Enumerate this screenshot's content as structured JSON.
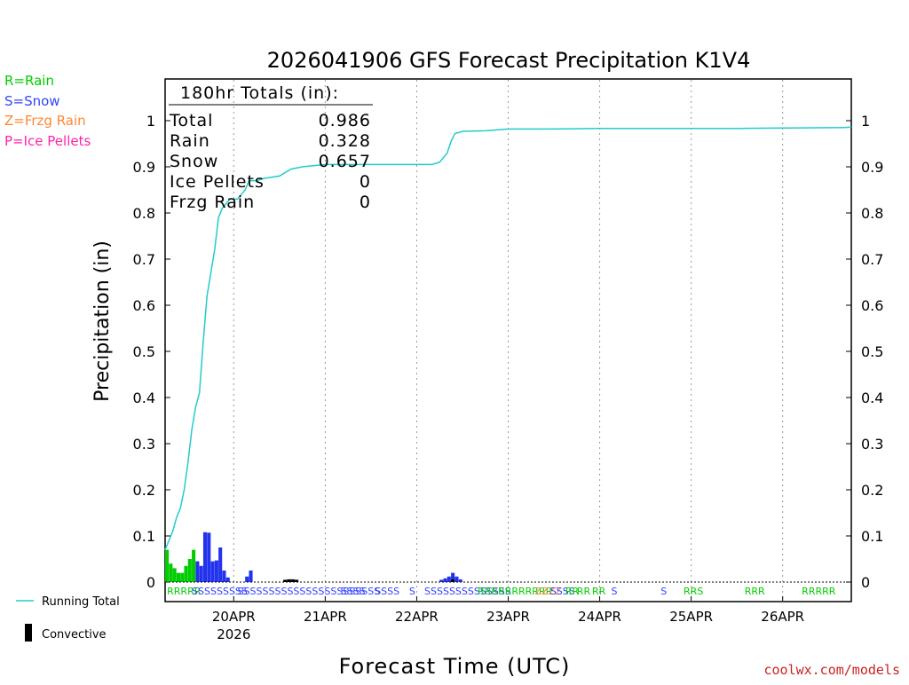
{
  "chart_data": {
    "type": "bar",
    "title": "2026041906 GFS Forecast Precipitation K1V4",
    "xlabel": "Forecast Time (UTC)",
    "ylabel": "Precipitation (in)",
    "ylim": [
      0,
      1.05
    ],
    "xlim_hours": [
      0,
      180
    ],
    "y_ticks": [
      "0",
      "0.1",
      "0.2",
      "0.3",
      "0.4",
      "0.5",
      "0.6",
      "0.7",
      "0.8",
      "0.9",
      "1"
    ],
    "x_ticks": [
      {
        "label": "20APR",
        "hour": 18,
        "sublabel": "2026"
      },
      {
        "label": "21APR",
        "hour": 42,
        "sublabel": ""
      },
      {
        "label": "22APR",
        "hour": 66,
        "sublabel": ""
      },
      {
        "label": "23APR",
        "hour": 90,
        "sublabel": ""
      },
      {
        "label": "24APR",
        "hour": 114,
        "sublabel": ""
      },
      {
        "label": "25APR",
        "hour": 138,
        "sublabel": ""
      },
      {
        "label": "26APR",
        "hour": 162,
        "sublabel": ""
      }
    ],
    "legend": [
      {
        "label": "R=Rain",
        "color": "#00cc00"
      },
      {
        "label": "S=Snow",
        "color": "#3344ff"
      },
      {
        "label": "Z=Frzg Rain",
        "color": "#ff8833"
      },
      {
        "label": "P=Ice Pellets",
        "color": "#ff22aa"
      }
    ],
    "bottom_legend": {
      "running_total": "Running Total",
      "convective": "Convective"
    },
    "totals": {
      "header": "180hr Totals (in):",
      "rows": [
        {
          "label": "Total",
          "value": "0.986"
        },
        {
          "label": "Rain",
          "value": "0.328"
        },
        {
          "label": "Snow",
          "value": "0.657"
        },
        {
          "label": "Ice Pellets",
          "value": "0"
        },
        {
          "label": "Frzg Rain",
          "value": "0"
        }
      ]
    },
    "series": [
      {
        "name": "Rain",
        "color": "#00cc00",
        "hours": [
          0,
          1,
          2,
          3,
          4,
          5,
          6,
          7
        ],
        "values": [
          0.07,
          0.04,
          0.03,
          0.02,
          0.02,
          0.035,
          0.05,
          0.07
        ]
      },
      {
        "name": "Snow",
        "color": "#2233ee",
        "hours": [
          8,
          9,
          10,
          11,
          12,
          13,
          14,
          15,
          16,
          21,
          22,
          31,
          32,
          33,
          34,
          72,
          73,
          74,
          75,
          76,
          77
        ],
        "values": [
          0.045,
          0.035,
          0.108,
          0.107,
          0.045,
          0.047,
          0.075,
          0.025,
          0.01,
          0.012,
          0.025,
          0.003,
          0.005,
          0.005,
          0.004,
          0.005,
          0.008,
          0.012,
          0.02,
          0.012,
          0.006
        ]
      },
      {
        "name": "Convective",
        "color": "#000000",
        "hours": [
          31,
          32,
          33,
          34,
          75
        ],
        "values": [
          0.005,
          0.006,
          0.006,
          0.005,
          0.006
        ]
      }
    ],
    "running_total": {
      "name": "Running Total",
      "color": "#22cccc",
      "hours": [
        0,
        2,
        3,
        4,
        5,
        6,
        7,
        8,
        9,
        10,
        11,
        12,
        13,
        14,
        15,
        16,
        17,
        18,
        19,
        20,
        21,
        22,
        23,
        24,
        26,
        30,
        33,
        36,
        42,
        48,
        60,
        70,
        72,
        74,
        75,
        76,
        78,
        84,
        90,
        100,
        114,
        130,
        150,
        162,
        178,
        180
      ],
      "values": [
        0.07,
        0.11,
        0.14,
        0.16,
        0.2,
        0.26,
        0.33,
        0.38,
        0.41,
        0.52,
        0.62,
        0.67,
        0.72,
        0.79,
        0.81,
        0.82,
        0.83,
        0.83,
        0.83,
        0.84,
        0.85,
        0.87,
        0.87,
        0.87,
        0.875,
        0.88,
        0.895,
        0.9,
        0.905,
        0.905,
        0.905,
        0.905,
        0.91,
        0.93,
        0.955,
        0.972,
        0.977,
        0.978,
        0.982,
        0.982,
        0.983,
        0.983,
        0.983,
        0.984,
        0.985,
        0.986
      ]
    },
    "ptype_markers": [
      {
        "text": "RRRRR",
        "color": "#00cc00",
        "hour": 0.5
      },
      {
        "text": "SSSSSSSSS",
        "color": "#3344ff",
        "hour": 7
      },
      {
        "text": "SSSSSSSSSSSSSSSSSSSSSSS",
        "color": "#3344ff",
        "hour": 19
      },
      {
        "text": "SSSS",
        "color": "#3344ff",
        "hour": 46
      },
      {
        "text": "SSSS",
        "color": "#3344ff",
        "hour": 55
      },
      {
        "text": "S",
        "color": "#3344ff",
        "hour": 64
      },
      {
        "text": "SSSSSSSSSSSSSS",
        "color": "#3344ff",
        "hour": 68
      },
      {
        "text": "RRRRRRRRRRR",
        "color": "#00cc00",
        "hour": 82
      },
      {
        "text": "ZZZZ",
        "color": "#ff8833",
        "hour": 97
      },
      {
        "text": "SSSS",
        "color": "#3344ff",
        "hour": 101
      },
      {
        "text": "RR",
        "color": "#00cc00",
        "hour": 105
      },
      {
        "text": "RR",
        "color": "#00cc00",
        "hour": 108
      },
      {
        "text": "RR",
        "color": "#00cc00",
        "hour": 112
      },
      {
        "text": "S",
        "color": "#3344ff",
        "hour": 117
      },
      {
        "text": "S",
        "color": "#3344ff",
        "hour": 130
      },
      {
        "text": "RRS",
        "color": "#00cc00",
        "hour": 136
      },
      {
        "text": "RRR",
        "color": "#00cc00",
        "hour": 152
      },
      {
        "text": "RRRRR",
        "color": "#00cc00",
        "hour": 167
      }
    ],
    "credit": "coolwx.com/models"
  }
}
